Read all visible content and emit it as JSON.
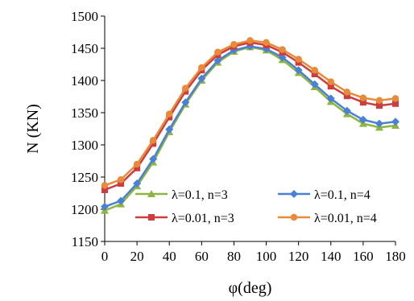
{
  "chart_data": {
    "type": "line",
    "xlabel": "φ(deg)",
    "ylabel": "N (KN)",
    "xlim": [
      0,
      180
    ],
    "ylim": [
      1150,
      1500
    ],
    "xticks": [
      0,
      20,
      40,
      60,
      80,
      100,
      120,
      140,
      160,
      180
    ],
    "yticks": [
      1150,
      1200,
      1250,
      1300,
      1350,
      1400,
      1450,
      1500
    ],
    "grid": false,
    "legend_position": "bottom-inside",
    "x": [
      0,
      10,
      20,
      30,
      40,
      50,
      60,
      70,
      80,
      90,
      100,
      110,
      120,
      130,
      140,
      150,
      160,
      170,
      180
    ],
    "series": [
      {
        "name": "λ=0.1, n=3",
        "color": "#8db53f",
        "marker": "triangle",
        "values": [
          1198,
          1208,
          1236,
          1273,
          1320,
          1363,
          1400,
          1428,
          1445,
          1452,
          1447,
          1432,
          1412,
          1390,
          1367,
          1348,
          1333,
          1327,
          1330
        ]
      },
      {
        "name": "λ=0.1, n=4",
        "color": "#4a81d4",
        "marker": "diamond",
        "values": [
          1204,
          1213,
          1240,
          1278,
          1324,
          1366,
          1403,
          1431,
          1447,
          1453,
          1449,
          1436,
          1416,
          1394,
          1372,
          1353,
          1339,
          1333,
          1336
        ]
      },
      {
        "name": "λ=0.01, n=3",
        "color": "#cc3d3d",
        "marker": "square",
        "values": [
          1230,
          1240,
          1264,
          1302,
          1343,
          1383,
          1416,
          1440,
          1453,
          1459,
          1455,
          1444,
          1428,
          1410,
          1391,
          1376,
          1366,
          1361,
          1364
        ]
      },
      {
        "name": "λ=0.01, n=4",
        "color": "#e88a3a",
        "marker": "circle",
        "values": [
          1237,
          1246,
          1270,
          1307,
          1348,
          1388,
          1420,
          1444,
          1456,
          1462,
          1459,
          1448,
          1433,
          1416,
          1398,
          1382,
          1373,
          1369,
          1372
        ]
      }
    ]
  }
}
